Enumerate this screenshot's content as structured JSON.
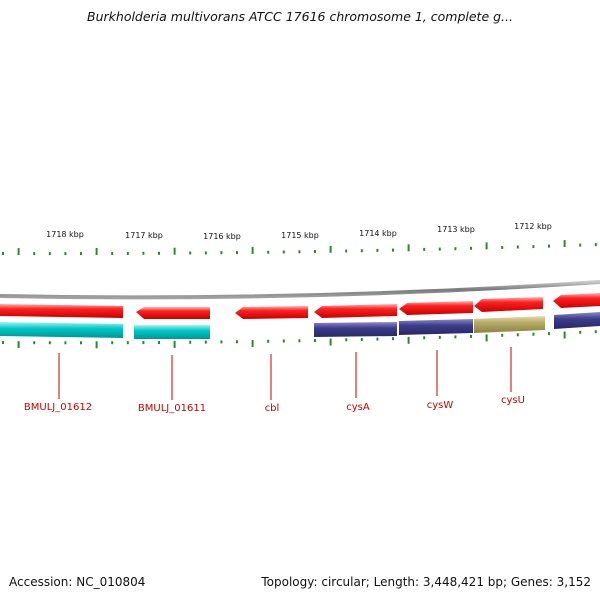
{
  "title": "Burkholderia multivorans ATCC 17616 chromosome 1, complete g...",
  "footer": {
    "accession": "Accession: NC_010804",
    "summary": "Topology: circular; Length: 3,448,421 bp; Genes: 3,152"
  },
  "scale_labels": [
    "1718 kbp",
    "1717 kbp",
    "1716 kbp",
    "1715 kbp",
    "1714 kbp",
    "1713 kbp",
    "1712 kbp"
  ],
  "gene_labels": [
    "BMULJ_01612",
    "BMULJ_01611",
    "cbl",
    "cysA",
    "cysW",
    "cysU"
  ],
  "colors": {
    "cds": "#ff0000",
    "track_cyan": "#00c8c8",
    "track_purple": "#3c3c8c",
    "track_olive": "#b4aa64",
    "backbone": "#888888",
    "tick": "#2a8a2a",
    "gene_label": "#cc0000"
  }
}
